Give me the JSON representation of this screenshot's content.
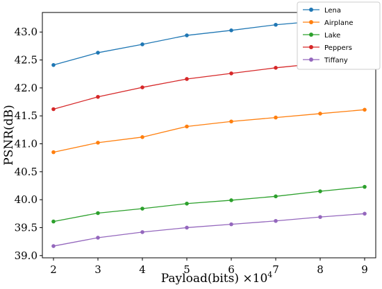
{
  "chart_data": {
    "type": "line",
    "xlabel": "Payload(bits) ×10",
    "xlabel_exponent": "4",
    "ylabel": "PSNR(dB)",
    "x": [
      2,
      3,
      4,
      5,
      6,
      7,
      8,
      9
    ],
    "x_ticks": [
      "2",
      "3",
      "4",
      "5",
      "6",
      "7",
      "8",
      "9"
    ],
    "xlim": [
      1.75,
      9.25
    ],
    "y_ticks": [
      "39.0",
      "39.5",
      "40.0",
      "40.5",
      "41.0",
      "41.5",
      "42.0",
      "42.5",
      "43.0"
    ],
    "ylim": [
      38.96,
      43.35
    ],
    "grid": false,
    "legend_position": "top-right",
    "series": [
      {
        "name": "Lena",
        "color": "#1f77b4",
        "values": [
          42.41,
          42.63,
          42.78,
          42.94,
          43.03,
          43.13,
          43.2,
          43.26
        ]
      },
      {
        "name": "Airplane",
        "color": "#ff7f0e",
        "values": [
          40.85,
          41.02,
          41.12,
          41.31,
          41.4,
          41.47,
          41.54,
          41.61
        ]
      },
      {
        "name": "Lake",
        "color": "#2ca02c",
        "values": [
          39.61,
          39.76,
          39.84,
          39.93,
          39.99,
          40.06,
          40.15,
          40.23
        ]
      },
      {
        "name": "Peppers",
        "color": "#d62728",
        "values": [
          41.62,
          41.84,
          42.01,
          42.16,
          42.26,
          42.36,
          42.44,
          42.52
        ]
      },
      {
        "name": "Tiffany",
        "color": "#9467bd",
        "values": [
          39.17,
          39.32,
          39.42,
          39.5,
          39.56,
          39.62,
          39.69,
          39.75
        ]
      }
    ]
  }
}
